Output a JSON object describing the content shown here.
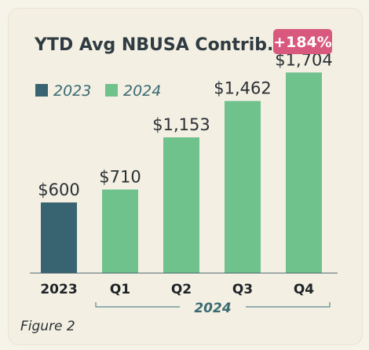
{
  "chart_data": {
    "type": "bar",
    "title": "YTD Avg NBUSA Contrib.",
    "categories": [
      "2023",
      "Q1",
      "Q2",
      "Q3",
      "Q4"
    ],
    "values": [
      600,
      710,
      1153,
      1462,
      1704
    ],
    "value_labels": [
      "$600",
      "$710",
      "$1,153",
      "$1,462",
      "$1,704"
    ],
    "bar_series": [
      "2023",
      "2024",
      "2024",
      "2024",
      "2024"
    ],
    "legend": [
      {
        "name": "2023",
        "color": "#386471"
      },
      {
        "name": "2024",
        "color": "#6fc28c"
      }
    ],
    "group_label": "2024",
    "group_covers": [
      "Q1",
      "Q2",
      "Q3",
      "Q4"
    ],
    "badge": {
      "text": "+184%",
      "color": "#d9587d",
      "over_category": "Q4"
    },
    "ylim": [
      0,
      1800
    ],
    "grid": false,
    "legend_position": "top-left"
  },
  "caption": "Figure 2"
}
